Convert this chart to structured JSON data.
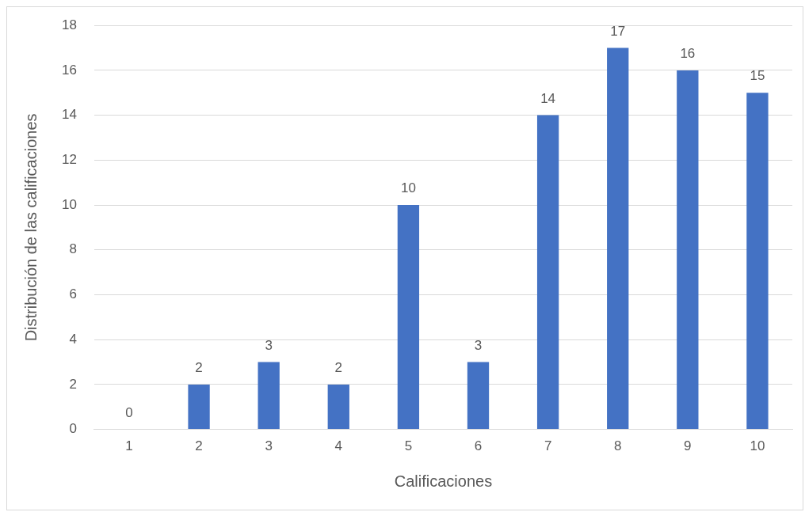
{
  "chart_data": {
    "type": "bar",
    "xlabel": "Calificaciones",
    "ylabel": "Distribución de las calificaciones",
    "categories": [
      "1",
      "2",
      "3",
      "4",
      "5",
      "6",
      "7",
      "8",
      "9",
      "10"
    ],
    "values": [
      0,
      2,
      3,
      2,
      10,
      3,
      14,
      17,
      16,
      15
    ],
    "color": "#4472c4",
    "ylim": [
      0,
      18
    ],
    "yticks": [
      0,
      2,
      4,
      6,
      8,
      10,
      12,
      14,
      16,
      18
    ],
    "grid": "y",
    "legend": false,
    "data_labels": true
  }
}
